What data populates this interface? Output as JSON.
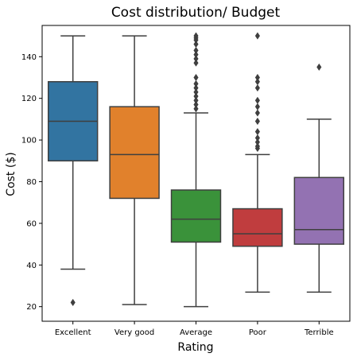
{
  "chart_data": {
    "type": "boxplot",
    "title": "Cost distribution/ Budget",
    "xlabel": "Rating",
    "ylabel": "Cost ($)",
    "ylim": [
      13,
      155
    ],
    "yticks": [
      20,
      40,
      60,
      80,
      100,
      120,
      140
    ],
    "grid": false,
    "categories": [
      "Excellent",
      "Very good",
      "Average",
      "Poor",
      "Terrible"
    ],
    "series": [
      {
        "category": "Excellent",
        "color": "#3274a1",
        "whisker_low": 38,
        "q1": 90,
        "median": 109,
        "q3": 128,
        "whisker_high": 150,
        "outliers": [
          22
        ]
      },
      {
        "category": "Very good",
        "color": "#e1812c",
        "whisker_low": 21,
        "q1": 72,
        "median": 93,
        "q3": 116,
        "whisker_high": 150,
        "outliers": []
      },
      {
        "category": "Average",
        "color": "#3a923a",
        "whisker_low": 20,
        "q1": 51,
        "median": 62,
        "q3": 76,
        "whisker_high": 113,
        "outliers": [
          115,
          117,
          119,
          121,
          123,
          125,
          127,
          130,
          137,
          139,
          141,
          143,
          146,
          148,
          149,
          150
        ]
      },
      {
        "category": "Poor",
        "color": "#c03d3e",
        "whisker_low": 27,
        "q1": 49,
        "median": 55,
        "q3": 67,
        "whisker_high": 93,
        "outliers": [
          96,
          97,
          99,
          101,
          104,
          109,
          113,
          116,
          119,
          125,
          128,
          130,
          150
        ]
      },
      {
        "category": "Terrible",
        "color": "#9372b2",
        "whisker_low": 27,
        "q1": 50,
        "median": 57,
        "q3": 82,
        "whisker_high": 110,
        "outliers": [
          135
        ]
      }
    ]
  }
}
